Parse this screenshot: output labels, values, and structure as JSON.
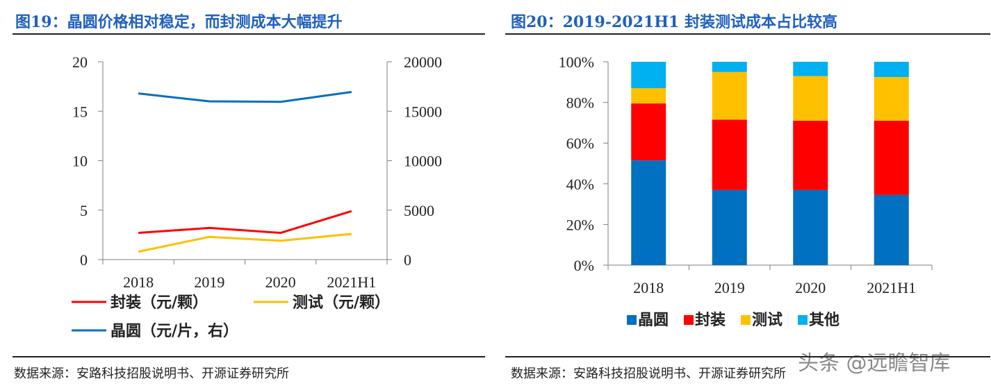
{
  "chart_data": [
    {
      "type": "line",
      "title": "图19：晶圆价格相对稳定，而封测成本大幅提升",
      "categories": [
        "2018",
        "2019",
        "2020",
        "2021H1"
      ],
      "left_axis": {
        "ticks": [
          "0",
          "5",
          "10",
          "15",
          "20"
        ],
        "ylim": [
          0,
          20
        ]
      },
      "right_axis": {
        "ticks": [
          "0",
          "5000",
          "10000",
          "15000",
          "20000"
        ],
        "ylim": [
          0,
          20000
        ]
      },
      "series": [
        {
          "name": "封装（元/颗）",
          "axis": "left",
          "color": "#ff0000",
          "values": [
            2.7,
            3.2,
            2.7,
            4.9
          ]
        },
        {
          "name": "测试（元/颗）",
          "axis": "left",
          "color": "#ffc000",
          "values": [
            0.8,
            2.3,
            1.9,
            2.6
          ]
        },
        {
          "name": "晶圆（元/片，右）",
          "axis": "right",
          "color": "#0070c0",
          "values": [
            16800,
            16000,
            15950,
            16950
          ]
        }
      ],
      "source": "数据来源：安路科技招股说明书、开源证券研究所"
    },
    {
      "type": "bar",
      "stacked": true,
      "title": "图20：2019-2021H1 封装测试成本占比较高",
      "categories": [
        "2018",
        "2019",
        "2020",
        "2021H1"
      ],
      "y_ticks": [
        "0%",
        "20%",
        "40%",
        "60%",
        "80%",
        "100%"
      ],
      "ylim": [
        0,
        100
      ],
      "series": [
        {
          "name": "晶圆",
          "color": "#0070c0",
          "values": [
            51.5,
            37,
            37,
            34.5
          ]
        },
        {
          "name": "封装",
          "color": "#ff0000",
          "values": [
            28,
            34.5,
            34,
            36.5
          ]
        },
        {
          "name": "测试",
          "color": "#ffc000",
          "values": [
            7.5,
            23.5,
            22,
            21.5
          ]
        },
        {
          "name": "其他",
          "color": "#00b0f0",
          "values": [
            13,
            5,
            7,
            7.5
          ]
        }
      ],
      "source": "数据来源：安路科技招股说明书、开源证券研究所"
    }
  ],
  "watermark": "头条 @远瞻智库"
}
